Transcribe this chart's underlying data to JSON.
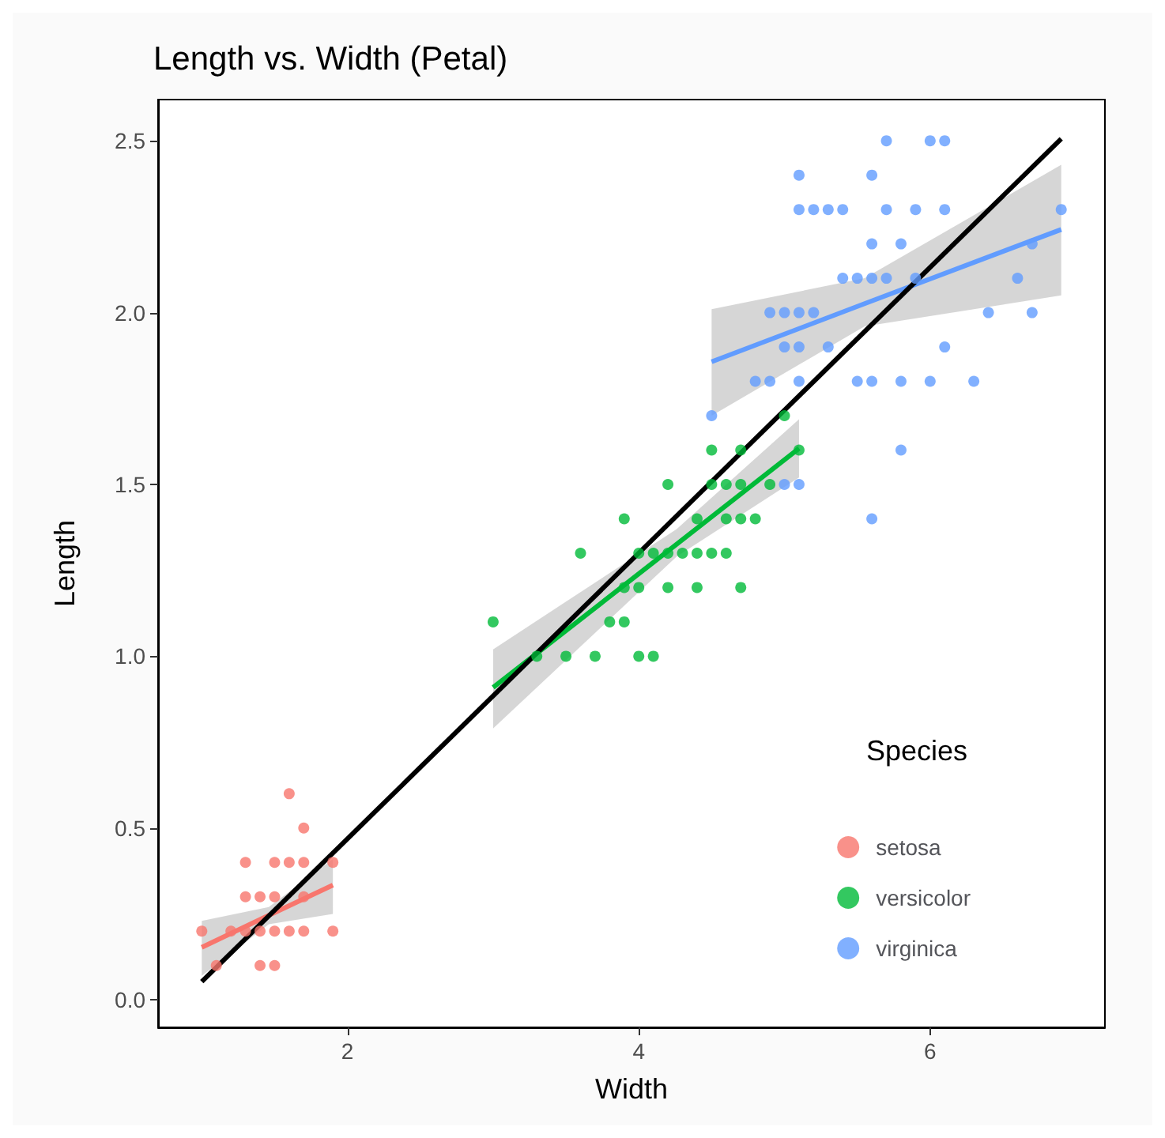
{
  "chart_data": {
    "type": "scatter",
    "title": "Length vs. Width (Petal)",
    "xlabel": "Width",
    "ylabel": "Length",
    "legend_title": "Species",
    "legend": "bottom right",
    "grid": false,
    "marker": "circle",
    "xlim": [
      0.7,
      7.2
    ],
    "xticks": [
      2,
      4,
      6
    ],
    "ylim": [
      -0.08,
      2.62
    ],
    "yticks": [
      {
        "value": 0,
        "label": "0.0"
      },
      {
        "value": 0.5,
        "label": "0.5"
      },
      {
        "value": 1,
        "label": "1.0"
      },
      {
        "value": 1.5,
        "label": "1.5"
      },
      {
        "value": 2,
        "label": "2.0"
      },
      {
        "value": 2.5,
        "label": "2.5"
      }
    ],
    "series": [
      {
        "name": "setosa",
        "color": "#f8766d",
        "x": [
          1.0,
          1.1,
          1.2,
          1.3,
          1.3,
          1.3,
          1.4,
          1.4,
          1.4,
          1.5,
          1.5,
          1.5,
          1.5,
          1.6,
          1.6,
          1.6,
          1.7,
          1.7,
          1.7,
          1.7,
          1.9,
          1.9
        ],
        "values": [
          0.2,
          0.1,
          0.2,
          0.2,
          0.3,
          0.4,
          0.1,
          0.2,
          0.3,
          0.1,
          0.2,
          0.3,
          0.4,
          0.2,
          0.4,
          0.6,
          0.2,
          0.3,
          0.4,
          0.5,
          0.2,
          0.4
        ]
      },
      {
        "name": "versicolor",
        "color": "#00ba38",
        "x": [
          3.0,
          3.3,
          3.5,
          3.6,
          3.7,
          3.8,
          3.9,
          3.9,
          3.9,
          4.0,
          4.0,
          4.0,
          4.1,
          4.1,
          4.2,
          4.2,
          4.2,
          4.3,
          4.4,
          4.4,
          4.4,
          4.5,
          4.5,
          4.5,
          4.6,
          4.6,
          4.6,
          4.7,
          4.7,
          4.7,
          4.7,
          4.8,
          4.9,
          5.0,
          5.1
        ],
        "values": [
          1.1,
          1.0,
          1.0,
          1.3,
          1.0,
          1.1,
          1.1,
          1.2,
          1.4,
          1.0,
          1.2,
          1.3,
          1.0,
          1.3,
          1.2,
          1.3,
          1.5,
          1.3,
          1.2,
          1.3,
          1.4,
          1.3,
          1.5,
          1.6,
          1.3,
          1.4,
          1.5,
          1.2,
          1.4,
          1.5,
          1.6,
          1.4,
          1.5,
          1.7,
          1.6
        ]
      },
      {
        "name": "virginica",
        "color": "#619cff",
        "x": [
          4.5,
          4.8,
          4.9,
          4.9,
          5.0,
          5.0,
          5.0,
          5.1,
          5.1,
          5.1,
          5.1,
          5.1,
          5.1,
          5.2,
          5.2,
          5.3,
          5.3,
          5.4,
          5.4,
          5.5,
          5.5,
          5.6,
          5.6,
          5.6,
          5.6,
          5.6,
          5.7,
          5.7,
          5.7,
          5.8,
          5.8,
          5.8,
          5.9,
          5.9,
          6.0,
          6.0,
          6.1,
          6.1,
          6.1,
          6.3,
          6.4,
          6.6,
          6.7,
          6.7,
          6.9
        ],
        "values": [
          1.7,
          1.8,
          1.8,
          2.0,
          1.5,
          1.9,
          2.0,
          1.5,
          1.8,
          1.9,
          2.0,
          2.3,
          2.4,
          2.0,
          2.3,
          1.9,
          2.3,
          2.1,
          2.3,
          1.8,
          2.1,
          1.4,
          1.8,
          2.1,
          2.2,
          2.4,
          2.1,
          2.3,
          2.5,
          1.6,
          1.8,
          2.2,
          2.1,
          2.3,
          1.8,
          2.5,
          1.9,
          2.3,
          2.5,
          1.8,
          2.0,
          2.1,
          2.0,
          2.2,
          2.3
        ]
      },
      {
        "type": "line",
        "marker": "none",
        "color": "#f8766d",
        "x": [
          1.0,
          1.46,
          1.9
        ],
        "values": [
          0.153,
          0.246,
          0.334
        ],
        "lower": [
          0.07,
          0.22,
          0.25
        ],
        "upper": [
          0.23,
          0.27,
          0.41
        ]
      },
      {
        "type": "line",
        "marker": "none",
        "color": "#00ba38",
        "x": [
          3.0,
          4.26,
          5.1
        ],
        "values": [
          0.909,
          1.326,
          1.605
        ],
        "lower": [
          0.79,
          1.29,
          1.52
        ],
        "upper": [
          1.02,
          1.37,
          1.69
        ]
      },
      {
        "type": "line",
        "marker": "none",
        "color": "#619cff",
        "x": [
          4.5,
          5.55,
          6.9
        ],
        "values": [
          1.857,
          2.026,
          2.242
        ],
        "lower": [
          1.7,
          1.96,
          2.05
        ],
        "upper": [
          2.01,
          2.1,
          2.43
        ]
      },
      {
        "type": "line",
        "marker": "none",
        "color": "#000000",
        "x": [
          1.0,
          6.9
        ],
        "values": [
          0.053,
          2.506
        ]
      }
    ]
  }
}
